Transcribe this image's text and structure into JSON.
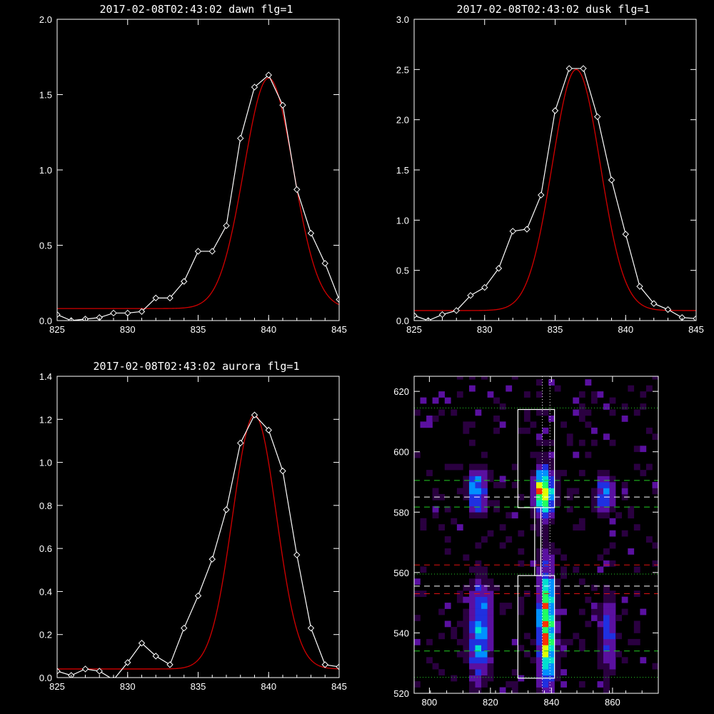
{
  "colors": {
    "background": "#000000",
    "axes": "#ffffff",
    "measured": "#ffffff",
    "fit": "#d40000",
    "guide_green": "#22cc22",
    "guide_red": "#dd1111",
    "guide_white": "#ffffff"
  },
  "chart_data": [
    {
      "id": "dawn",
      "type": "line",
      "title": "2017-02-08T02:43:02 dawn flg=1",
      "xlim": [
        825,
        845
      ],
      "ylim": [
        0,
        2.0
      ],
      "xticks": [
        "825",
        "830",
        "835",
        "840",
        "845"
      ],
      "yticks": [
        "0.0",
        "0.5",
        "1.0",
        "1.5",
        "2.0"
      ],
      "series": [
        {
          "x": [
            825,
            826,
            827,
            828,
            829,
            830,
            831,
            832,
            833,
            834,
            835,
            836,
            837,
            838,
            839,
            840,
            841,
            842,
            843,
            844,
            845
          ],
          "y": [
            0.04,
            0.0,
            0.01,
            0.02,
            0.05,
            0.05,
            0.06,
            0.15,
            0.15,
            0.26,
            0.46,
            0.46,
            0.63,
            1.21,
            1.55,
            1.63,
            1.43,
            0.87,
            0.58,
            0.38,
            0.14
          ],
          "marker": "diamond"
        },
        {
          "fit": {
            "amplitude": 1.53,
            "center": 840.0,
            "sigma": 1.75,
            "offset": 0.08
          }
        }
      ]
    },
    {
      "id": "dusk",
      "type": "line",
      "title": "2017-02-08T02:43:02 dusk flg=1",
      "xlim": [
        825,
        845
      ],
      "ylim": [
        0,
        3.0
      ],
      "xticks": [
        "825",
        "830",
        "835",
        "840",
        "845"
      ],
      "yticks": [
        "0.0",
        "0.5",
        "1.0",
        "1.5",
        "2.0",
        "2.5",
        "3.0"
      ],
      "series": [
        {
          "x": [
            825,
            826,
            827,
            828,
            829,
            830,
            831,
            832,
            833,
            834,
            835,
            836,
            837,
            838,
            839,
            840,
            841,
            842,
            843,
            844,
            845
          ],
          "y": [
            0.05,
            0.0,
            0.06,
            0.1,
            0.25,
            0.33,
            0.52,
            0.89,
            0.91,
            1.25,
            2.09,
            2.51,
            2.51,
            2.03,
            1.4,
            0.86,
            0.34,
            0.17,
            0.11,
            0.03,
            0.02
          ],
          "marker": "diamond"
        },
        {
          "fit": {
            "amplitude": 2.4,
            "center": 836.5,
            "sigma": 1.7,
            "offset": 0.1
          }
        }
      ]
    },
    {
      "id": "aurora",
      "type": "line",
      "title": "2017-02-08T02:43:02 aurora flg=1",
      "xlim": [
        825,
        845
      ],
      "ylim": [
        0,
        1.4
      ],
      "xticks": [
        "825",
        "830",
        "835",
        "840",
        "845"
      ],
      "yticks": [
        "0.0",
        "0.2",
        "0.4",
        "0.6",
        "0.8",
        "1.0",
        "1.2",
        "1.4"
      ],
      "series": [
        {
          "x": [
            825,
            826,
            827,
            828,
            829,
            830,
            831,
            832,
            833,
            834,
            835,
            836,
            837,
            838,
            839,
            840,
            841,
            842,
            843,
            844,
            845
          ],
          "y": [
            0.03,
            0.01,
            0.04,
            0.03,
            -0.01,
            0.07,
            0.16,
            0.1,
            0.06,
            0.23,
            0.38,
            0.55,
            0.78,
            1.09,
            1.22,
            1.15,
            0.96,
            0.57,
            0.23,
            0.06,
            0.05
          ],
          "marker": "diamond"
        },
        {
          "fit": {
            "amplitude": 1.18,
            "center": 839.0,
            "sigma": 1.55,
            "offset": 0.04
          }
        }
      ]
    },
    {
      "id": "image",
      "type": "heatmap",
      "title": "",
      "xlim": [
        795,
        875
      ],
      "ylim": [
        520,
        625
      ],
      "xticks": [
        "800",
        "820",
        "840",
        "860"
      ],
      "yticks": [
        "520",
        "540",
        "560",
        "580",
        "600",
        "620"
      ],
      "colormap": [
        "#2a0040",
        "#5a10a0",
        "#2030e0",
        "#0090ff",
        "#00e0d0",
        "#20ff60",
        "#e0ff00",
        "#ff3000"
      ],
      "sources": [
        {
          "x": 815.5,
          "y": 587,
          "sx": 2.0,
          "sy": 4.5,
          "peak": 0.55
        },
        {
          "x": 837.5,
          "y": 587,
          "sx": 2.0,
          "sy": 5.0,
          "peak": 1.0
        },
        {
          "x": 857.5,
          "y": 586,
          "sx": 2.0,
          "sy": 4.0,
          "peak": 0.45
        },
        {
          "x": 816.5,
          "y": 541,
          "sx": 2.5,
          "sy": 11.0,
          "peak": 0.5
        },
        {
          "x": 838.5,
          "y": 542,
          "sx": 1.8,
          "sy": 13.0,
          "peak": 0.85
        },
        {
          "x": 858.5,
          "y": 540,
          "sx": 2.0,
          "sy": 9.0,
          "peak": 0.28
        }
      ],
      "boxes": [
        {
          "x0": 829,
          "x1": 841,
          "y0": 581.5,
          "y1": 614
        },
        {
          "x0": 829,
          "x1": 841,
          "y0": 525,
          "y1": 559
        },
        {
          "x0": 834.5,
          "x1": 836.5,
          "y0": 559,
          "y1": 581.5
        }
      ],
      "hlines": [
        {
          "y": 614.5,
          "color": "guide_green",
          "style": "dotted"
        },
        {
          "y": 590.5,
          "color": "guide_green",
          "style": "dashed"
        },
        {
          "y": 585.0,
          "color": "guide_white",
          "style": "dashed"
        },
        {
          "y": 581.7,
          "color": "guide_green",
          "style": "dashed"
        },
        {
          "y": 562.5,
          "color": "guide_red",
          "style": "dashed"
        },
        {
          "y": 559.5,
          "color": "guide_green",
          "style": "dotted"
        },
        {
          "y": 555.5,
          "color": "guide_white",
          "style": "dashed"
        },
        {
          "y": 553.0,
          "color": "guide_red",
          "style": "dashed"
        },
        {
          "y": 534.0,
          "color": "guide_green",
          "style": "dashed"
        },
        {
          "y": 525.3,
          "color": "guide_green",
          "style": "dotted"
        }
      ],
      "vlines": [
        {
          "x": 837.0,
          "color": "guide_white",
          "style": "dotted"
        },
        {
          "x": 839.5,
          "color": "guide_white",
          "style": "dotted"
        }
      ]
    }
  ]
}
